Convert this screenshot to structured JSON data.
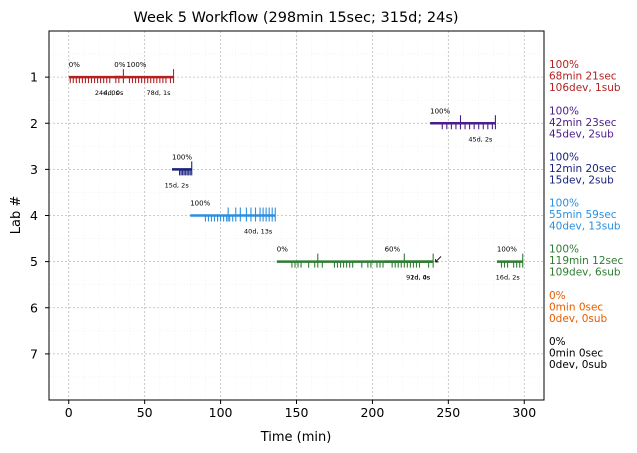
{
  "chart_data": {
    "type": "timeline",
    "title": "Week 5 Workflow (298min 15sec; 315d; 24s)",
    "xlabel": "Time (min)",
    "ylabel": "Lab #",
    "xlim": [
      -13,
      313
    ],
    "ylim": [
      8,
      0
    ],
    "xticks": [
      0,
      50,
      100,
      150,
      200,
      250,
      300
    ],
    "yticks": [
      1,
      2,
      3,
      4,
      5,
      6,
      7
    ],
    "grid": true,
    "labs": [
      {
        "lab": 1,
        "color": "#b22222",
        "segments": [
          {
            "start": 0,
            "end": 35,
            "start_label": "0%",
            "end_label": "24d, 0s"
          },
          {
            "start": 30,
            "end": 38,
            "start_label": "0%",
            "end_label": "4d, 0s"
          },
          {
            "start": 38,
            "end": 69,
            "start_label": "100%",
            "end_label": "78d, 1s"
          }
        ],
        "ticks_down": [
          1,
          3,
          5,
          7,
          9,
          11,
          13,
          15,
          17,
          19,
          21,
          23,
          25,
          27,
          31,
          33,
          40,
          42,
          44,
          46,
          48,
          50,
          52,
          54,
          56,
          58,
          60,
          62,
          64,
          67
        ],
        "ticks_up": [
          36,
          69
        ],
        "summary": [
          "100%",
          "68min 21sec",
          "106dev, 1sub"
        ]
      },
      {
        "lab": 2,
        "color": "#4b1c8c",
        "segments": [
          {
            "start": 238,
            "end": 281,
            "start_label": "100%",
            "end_label": "45d, 2s"
          }
        ],
        "ticks_down": [
          246,
          249,
          252,
          255,
          258,
          261,
          264,
          267,
          270,
          273,
          276,
          279
        ],
        "ticks_up": [
          258,
          281
        ],
        "summary": [
          "100%",
          "42min 23sec",
          "45dev, 2sub"
        ]
      },
      {
        "lab": 3,
        "color": "#1a237e",
        "segments": [
          {
            "start": 68,
            "end": 81,
            "start_label": "100%",
            "end_label": "15d, 2s"
          }
        ],
        "ticks_down": [
          73,
          74,
          75,
          76,
          77,
          78,
          79,
          80
        ],
        "ticks_up": [
          81
        ],
        "summary": [
          "100%",
          "12min 20sec",
          "15dev, 2sub"
        ]
      },
      {
        "lab": 4,
        "color": "#2b8fe0",
        "segments": [
          {
            "start": 80,
            "end": 136,
            "start_label": "100%",
            "end_label": "40d, 13s"
          }
        ],
        "ticks_down": [
          90,
          92,
          94,
          96,
          98,
          100,
          102,
          104,
          106,
          108
        ],
        "ticks_up": [
          105,
          110,
          113,
          117,
          120,
          123,
          126,
          128,
          130,
          132,
          134,
          136
        ],
        "summary": [
          "100%",
          "55min 59sec",
          "40dev, 13sub"
        ]
      },
      {
        "lab": 5,
        "color": "#2e7d32",
        "segments": [
          {
            "start": 137,
            "end": 240,
            "start_label": "0%",
            "end_label": "2d, 0s"
          },
          {
            "start": 208,
            "end": 240,
            "start_label": "60%",
            "end_label": "91d, 4s"
          },
          {
            "start": 282,
            "end": 299,
            "start_label": "100%",
            "end_label": "16d, 2s"
          }
        ],
        "ticks_down": [
          147,
          149,
          151,
          153,
          158,
          162,
          167,
          175,
          177,
          179,
          181,
          183,
          185,
          187,
          193,
          197,
          199,
          203,
          205,
          207,
          213,
          215,
          217,
          219,
          223,
          225,
          227,
          229,
          231,
          237,
          285,
          287,
          289,
          293,
          295,
          297
        ],
        "ticks_up": [
          164,
          221,
          240,
          299
        ],
        "summary": [
          "100%",
          "119min 12sec",
          "109dev, 6sub"
        ],
        "arrow": {
          "from_x": 248,
          "to_x": 241,
          "label": "↙"
        }
      },
      {
        "lab": 6,
        "color": "#e65c00",
        "segments": [],
        "ticks_down": [],
        "ticks_up": [],
        "summary": [
          "0%",
          "0min 0sec",
          "0dev, 0sub"
        ]
      },
      {
        "lab": 7,
        "color": "#000000",
        "segments": [],
        "ticks_down": [],
        "ticks_up": [],
        "summary": [
          "0%",
          "0min 0sec",
          "0dev, 0sub"
        ]
      }
    ]
  }
}
